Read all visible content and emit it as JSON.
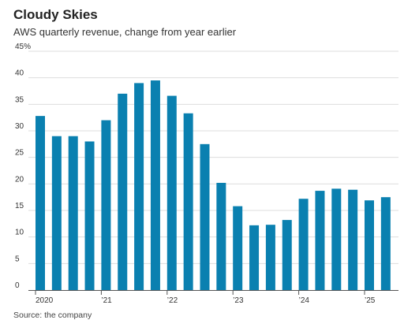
{
  "chart_data": {
    "type": "bar",
    "title": "Cloudy Skies",
    "subtitle": "AWS quarterly revenue, change from year earlier",
    "source": "Source: the company",
    "ylim": [
      0,
      45
    ],
    "y_ticks": [
      "0",
      "5",
      "10",
      "15",
      "20",
      "25",
      "30",
      "35",
      "40",
      "45%"
    ],
    "y_tick_values": [
      0,
      5,
      10,
      15,
      20,
      25,
      30,
      35,
      40,
      45
    ],
    "categories": [
      "Q1 2020",
      "Q2 2020",
      "Q3 2020",
      "Q4 2020",
      "Q1 2021",
      "Q2 2021",
      "Q3 2021",
      "Q4 2021",
      "Q1 2022",
      "Q2 2022",
      "Q3 2022",
      "Q4 2022",
      "Q1 2023",
      "Q2 2023",
      "Q3 2023",
      "Q4 2023",
      "Q1 2024",
      "Q2 2024",
      "Q3 2024",
      "Q4 2024",
      "Q1 2025",
      "Q2 2025"
    ],
    "values": [
      32.8,
      29.0,
      29.0,
      28.0,
      32.0,
      37.0,
      39.0,
      39.5,
      36.6,
      33.3,
      27.5,
      20.2,
      15.8,
      12.2,
      12.3,
      13.2,
      17.2,
      18.7,
      19.1,
      18.9,
      16.9,
      17.5
    ],
    "x_tick_labels": [
      {
        "label": "2020",
        "index": 0
      },
      {
        "label": "’21",
        "index": 4
      },
      {
        "label": "’22",
        "index": 8
      },
      {
        "label": "’23",
        "index": 12
      },
      {
        "label": "’24",
        "index": 16
      },
      {
        "label": "’25",
        "index": 20
      }
    ],
    "grid": true,
    "bar_color": "#0a80b0",
    "grid_color": "#dddddd",
    "axis_color": "#555555"
  }
}
